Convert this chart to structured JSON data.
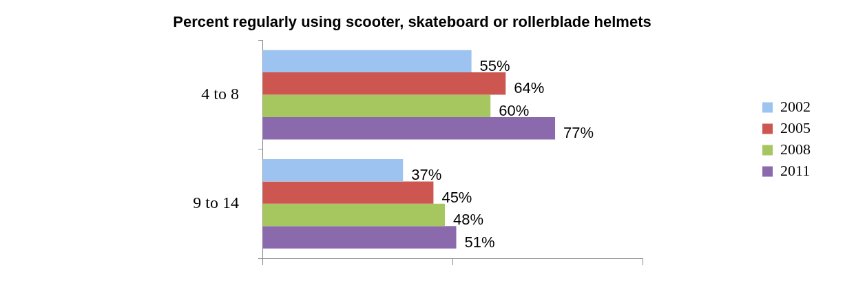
{
  "chart_data": {
    "type": "bar",
    "orientation": "horizontal",
    "title": "Percent regularly using scooter, skateboard or rollerblade helmets",
    "categories": [
      "4 to 8",
      "9 to 14"
    ],
    "series": [
      {
        "name": "2002",
        "color": "#9dc3f0",
        "values": [
          55,
          37
        ],
        "value_labels": [
          "55%",
          "37%"
        ]
      },
      {
        "name": "2005",
        "color": "#cd5650",
        "values": [
          64,
          45
        ],
        "value_labels": [
          "64%",
          "45%"
        ]
      },
      {
        "name": "2008",
        "color": "#a6c75f",
        "values": [
          60,
          48
        ],
        "value_labels": [
          "60%",
          "48%"
        ]
      },
      {
        "name": "2011",
        "color": "#8a6aad",
        "values": [
          77,
          51
        ],
        "value_labels": [
          "77%",
          "51%"
        ]
      }
    ],
    "xlim": [
      0,
      100
    ],
    "xticks": [
      {
        "value": 0,
        "label": null
      },
      {
        "value": 50,
        "label": null
      },
      {
        "value": 100,
        "label": null
      }
    ],
    "tick_labels": "y",
    "grid": false,
    "legend": "right"
  }
}
